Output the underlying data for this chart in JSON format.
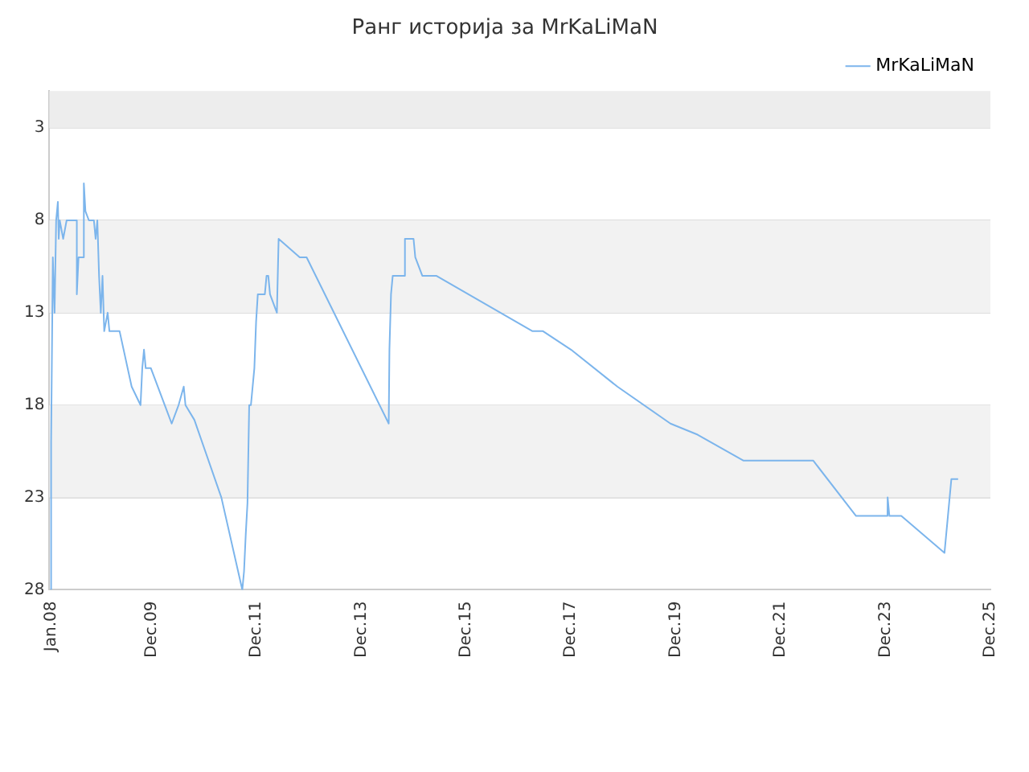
{
  "chart_data": {
    "type": "line",
    "title": "Ранг историја за MrKaLiMaN",
    "x": [
      "2008-01-01",
      "2008-01-01",
      "2008-01-13",
      "2008-01-25",
      "2008-02-05",
      "2008-02-17",
      "2008-02-23",
      "2008-03-01",
      "2008-03-25",
      "2008-04-18",
      "2008-06-28",
      "2008-06-28",
      "2008-07-10",
      "2008-08-15",
      "2008-08-16",
      "2008-08-27",
      "2008-09-20",
      "2008-10-25",
      "2008-11-06",
      "2008-11-18",
      "2008-11-30",
      "2008-12-12",
      "2008-12-24",
      "2009-01-05",
      "2009-01-29",
      "2009-02-10",
      "2009-04-22",
      "2009-07-15",
      "2009-09-15",
      "2009-09-27",
      "2009-10-09",
      "2009-10-21",
      "2009-11-26",
      "2010-04-20",
      "2010-06-07",
      "2010-07-13",
      "2010-07-25",
      "2010-09-25",
      "2011-04-01",
      "2011-08-25",
      "2011-09-06",
      "2011-09-18",
      "2011-09-30",
      "2011-10-12",
      "2011-10-24",
      "2011-11-05",
      "2011-11-17",
      "2011-11-29",
      "2011-12-11",
      "2012-01-29",
      "2012-02-10",
      "2012-02-22",
      "2012-03-05",
      "2012-04-22",
      "2012-05-04",
      "2012-09-28",
      "2012-11-15",
      "2014-06-10",
      "2014-06-15",
      "2014-06-26",
      "2014-07-08",
      "2014-10-01",
      "2014-10-01",
      "2014-11-30",
      "2014-12-12",
      "2015-01-30",
      "2015-05-07",
      "2017-03-08",
      "2017-05-20",
      "2017-12-01",
      "2018-10-20",
      "2019-10-25",
      "2020-05-01",
      "2021-03-15",
      "2022-07-15",
      "2023-05-10",
      "2023-12-15",
      "2023-12-16",
      "2023-12-28",
      "2024-03-20",
      "2025-01-15",
      "2025-02-08",
      "2025-02-20",
      "2025-03-04",
      "2025-04-20"
    ],
    "series": [
      {
        "name": "MrKaLiMaN",
        "color": "#7cb5ec",
        "values": [
          28,
          20,
          10,
          13,
          8,
          7,
          9,
          8,
          9,
          8,
          8,
          12,
          10,
          10,
          6,
          7.5,
          8,
          8,
          9,
          8,
          11,
          13,
          11,
          14,
          13,
          14,
          14,
          17,
          18,
          16,
          15,
          16,
          16,
          19,
          18,
          17,
          18,
          18.8,
          23,
          28,
          27,
          25,
          23.3,
          18,
          18,
          17,
          16,
          13.5,
          12,
          12,
          11,
          11,
          12,
          13,
          9,
          10,
          10,
          19,
          15,
          12,
          11,
          11,
          9,
          9,
          10,
          11,
          11,
          14,
          14,
          15,
          17,
          19,
          19.6,
          21,
          21,
          24,
          24,
          23,
          24,
          24,
          26,
          24,
          23,
          22,
          22
        ]
      }
    ],
    "xlim": [
      "2007-12-20",
      "2025-12-01"
    ],
    "xticks": [
      {
        "value": "2008-01",
        "label": "Jan.08"
      },
      {
        "value": "2009-12",
        "label": "Dec.09"
      },
      {
        "value": "2011-12",
        "label": "Dec.11"
      },
      {
        "value": "2013-12",
        "label": "Dec.13"
      },
      {
        "value": "2015-12",
        "label": "Dec.15"
      },
      {
        "value": "2017-12",
        "label": "Dec.17"
      },
      {
        "value": "2019-12",
        "label": "Dec.19"
      },
      {
        "value": "2021-12",
        "label": "Dec.21"
      },
      {
        "value": "2023-12",
        "label": "Dec.23"
      },
      {
        "value": "2025-12",
        "label": "Dec.25"
      }
    ],
    "ylim": [
      28,
      1
    ],
    "yticks": [
      3,
      8,
      13,
      18,
      23,
      28
    ],
    "bands": [
      {
        "axis": "y",
        "from": 1,
        "to": 3,
        "color": "#ededed"
      },
      {
        "axis": "y",
        "from": 8,
        "to": 13,
        "color": "#f2f2f2"
      },
      {
        "axis": "y",
        "from": 18,
        "to": 23,
        "color": "#f2f2f2"
      }
    ],
    "grid": "y",
    "legend": "top right",
    "marker": "none",
    "line_style": "solid"
  }
}
